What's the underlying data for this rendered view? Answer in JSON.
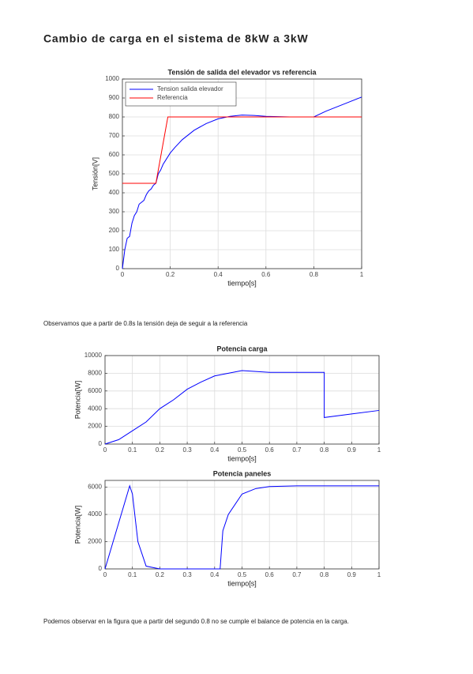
{
  "title": "Cambio de carga en el sistema de 8kW a 3kW",
  "paragraphs": [
    "Observamos que a partir de 0.8s la tensión deja de seguir a la referencia",
    "Podemos observar en la figura que a partir del segundo 0.8 no se cumple el balance de potencia en la carga."
  ],
  "chart_data": [
    {
      "type": "line",
      "title": "Tensión de salida del elevador vs referencia",
      "x_label": "tiempo[s]",
      "y_label": "Tensión[V]",
      "xlim": [
        0,
        1
      ],
      "xticks": [
        0,
        0.2,
        0.4,
        0.6,
        0.8,
        1
      ],
      "ylim": [
        0,
        1000
      ],
      "yticks": [
        0,
        100,
        200,
        300,
        400,
        500,
        600,
        700,
        800,
        900,
        1000
      ],
      "grid": true,
      "legend": "upper left",
      "series": [
        {
          "name": "Tension salida elevador",
          "color": "#0000ff",
          "x": [
            0,
            0.01,
            0.02,
            0.03,
            0.04,
            0.05,
            0.06,
            0.07,
            0.08,
            0.09,
            0.1,
            0.11,
            0.12,
            0.13,
            0.14,
            0.15,
            0.16,
            0.17,
            0.18,
            0.2,
            0.22,
            0.25,
            0.3,
            0.35,
            0.4,
            0.45,
            0.5,
            0.55,
            0.6,
            0.7,
            0.8,
            0.85,
            0.9,
            0.95,
            1
          ],
          "values": [
            0,
            100,
            160,
            170,
            240,
            280,
            300,
            340,
            350,
            360,
            390,
            410,
            420,
            440,
            450,
            500,
            520,
            550,
            570,
            610,
            640,
            680,
            730,
            765,
            790,
            803,
            810,
            808,
            803,
            800,
            800,
            830,
            855,
            880,
            905
          ]
        },
        {
          "name": "Referencia",
          "color": "#ff0000",
          "x": [
            0,
            0.14,
            0.19,
            1
          ],
          "values": [
            450,
            450,
            800,
            800
          ]
        }
      ]
    },
    {
      "type": "line",
      "title": "Potencia carga",
      "x_label": "tiempo[s]",
      "y_label": "Potencia[W]",
      "xlim": [
        0,
        1
      ],
      "xticks": [
        0,
        0.1,
        0.2,
        0.3,
        0.4,
        0.5,
        0.6,
        0.7,
        0.8,
        0.9,
        1
      ],
      "ylim": [
        0,
        10000
      ],
      "yticks": [
        0,
        2000,
        4000,
        6000,
        8000,
        10000
      ],
      "grid": true,
      "series": [
        {
          "color": "#0000ff",
          "x": [
            0,
            0.05,
            0.1,
            0.15,
            0.2,
            0.25,
            0.3,
            0.35,
            0.4,
            0.45,
            0.5,
            0.55,
            0.6,
            0.8,
            0.8,
            0.9,
            1
          ],
          "values": [
            0,
            500,
            1500,
            2500,
            4000,
            5000,
            6200,
            7000,
            7700,
            8000,
            8300,
            8200,
            8100,
            8100,
            3000,
            3400,
            3800
          ]
        }
      ]
    },
    {
      "type": "line",
      "title": "Potencia paneles",
      "x_label": "tiempo[s]",
      "y_label": "Potencia[W]",
      "xlim": [
        0,
        1
      ],
      "xticks": [
        0,
        0.1,
        0.2,
        0.3,
        0.4,
        0.5,
        0.6,
        0.7,
        0.8,
        0.9,
        1
      ],
      "ylim": [
        0,
        6500
      ],
      "yticks": [
        0,
        2000,
        4000,
        6000
      ],
      "grid": true,
      "series": [
        {
          "color": "#0000ff",
          "x": [
            0,
            0.09,
            0.1,
            0.12,
            0.15,
            0.2,
            0.42,
            0.43,
            0.45,
            0.5,
            0.55,
            0.6,
            0.7,
            1
          ],
          "values": [
            0,
            6100,
            5500,
            2000,
            200,
            0,
            0,
            2800,
            4000,
            5500,
            5900,
            6050,
            6100,
            6100
          ]
        }
      ]
    }
  ]
}
